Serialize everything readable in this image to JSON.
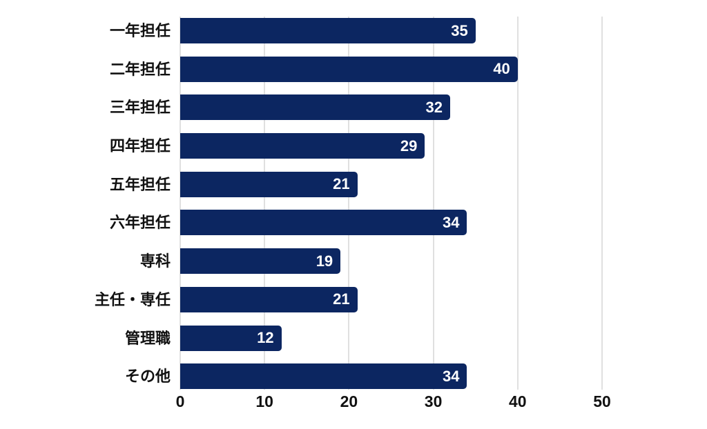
{
  "chart_data": {
    "type": "bar",
    "orientation": "horizontal",
    "title": "",
    "xlabel": "",
    "ylabel": "",
    "categories": [
      "一年担任",
      "二年担任",
      "三年担任",
      "四年担任",
      "五年担任",
      "六年担任",
      "専科",
      "主任・専任",
      "管理職",
      "その他"
    ],
    "values": [
      35,
      40,
      32,
      29,
      21,
      34,
      19,
      21,
      12,
      34
    ],
    "x_ticks": [
      0,
      10,
      20,
      30,
      40,
      50
    ],
    "xlim": [
      0,
      50
    ],
    "grid": true,
    "legend": false,
    "bar_color": "#0c2661",
    "value_label_color": "#ffffff",
    "gridline_color": "#e0e0e0",
    "tick_label_color": "#111111",
    "category_label_color": "#111111",
    "background_color": "#ffffff"
  }
}
